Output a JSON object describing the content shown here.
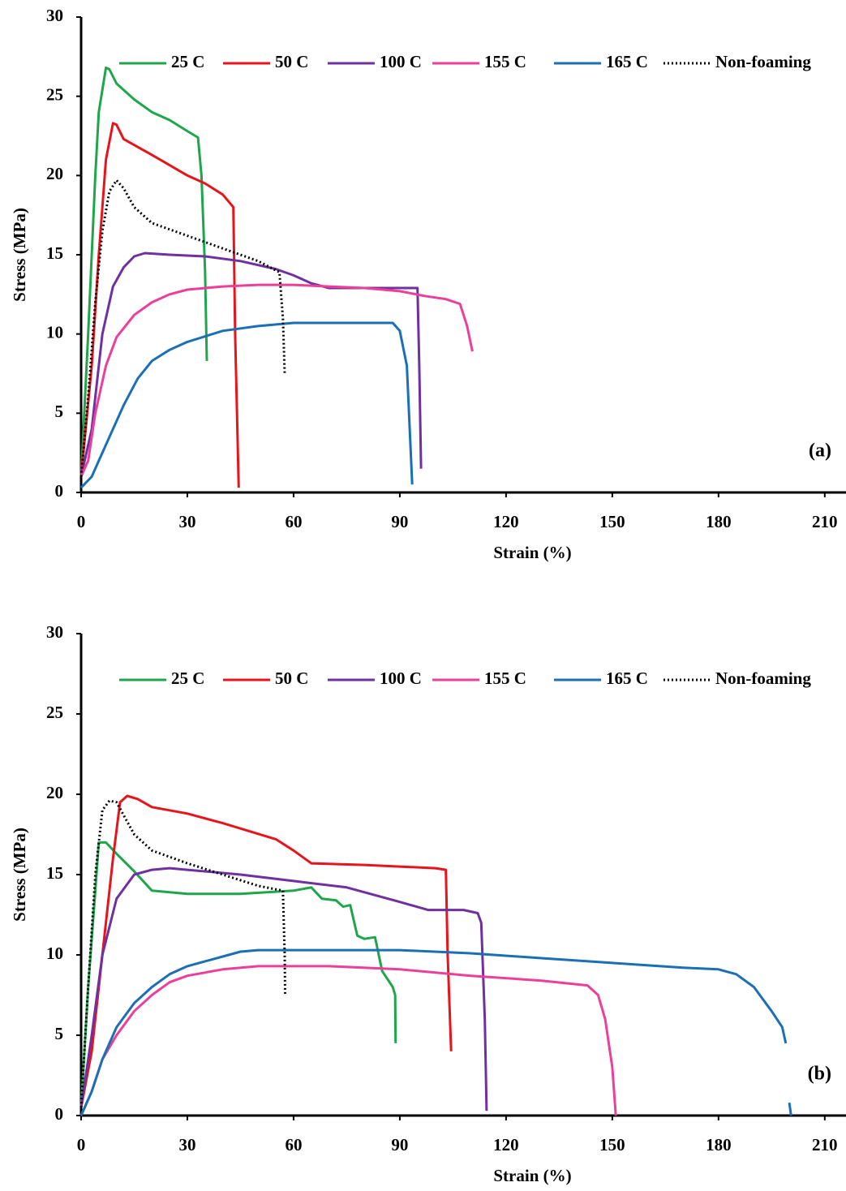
{
  "chart_data": [
    {
      "type": "line",
      "annotation": "(a)",
      "xlabel": "Strain (%)",
      "ylabel": "Stress (MPa)",
      "xlim": [
        0,
        216
      ],
      "ylim": [
        0,
        30
      ],
      "xticks": [
        0,
        30,
        60,
        90,
        120,
        150,
        180,
        210
      ],
      "yticks": [
        0,
        5,
        10,
        15,
        20,
        25,
        30
      ],
      "legend": "top",
      "series": [
        {
          "name": "25 C",
          "color": "#1fa64b",
          "line_style": "solid",
          "x": [
            0,
            2,
            4,
            5,
            7,
            8,
            10,
            15,
            20,
            25,
            30,
            33,
            34,
            35,
            35.5
          ],
          "values": [
            1,
            10,
            20,
            24,
            26.8,
            26.7,
            25.8,
            24.8,
            24,
            23.5,
            22.8,
            22.4,
            20,
            14,
            8.3
          ]
        },
        {
          "name": "50 C",
          "color": "#e8141b",
          "line_style": "solid",
          "x": [
            0,
            3,
            5,
            7,
            9,
            10,
            12,
            20,
            30,
            35,
            40,
            43,
            43.5,
            44.5
          ],
          "values": [
            1,
            8,
            15,
            21,
            23.3,
            23.2,
            22.3,
            21.3,
            20,
            19.5,
            18.8,
            18,
            10,
            0.3
          ]
        },
        {
          "name": "100 C",
          "color": "#7030a0",
          "line_style": "solid",
          "x": [
            0,
            3,
            6,
            9,
            12,
            15,
            18,
            25,
            35,
            45,
            55,
            60,
            65,
            70,
            80,
            95,
            95.5,
            96
          ],
          "values": [
            1,
            4,
            10,
            13,
            14.2,
            14.9,
            15.1,
            15,
            14.9,
            14.6,
            14.1,
            13.7,
            13.2,
            12.9,
            12.9,
            12.9,
            8,
            1.5
          ]
        },
        {
          "name": "155 C",
          "color": "#ec3f9a",
          "line_style": "solid",
          "x": [
            0,
            2,
            4,
            7,
            10,
            15,
            20,
            25,
            30,
            40,
            50,
            60,
            70,
            80,
            90,
            97,
            103,
            107,
            109,
            110.5
          ],
          "values": [
            1,
            2,
            5,
            8,
            9.8,
            11.2,
            12,
            12.5,
            12.8,
            13,
            13.1,
            13.1,
            13,
            12.9,
            12.7,
            12.4,
            12.2,
            11.9,
            10.5,
            8.9
          ]
        },
        {
          "name": "165 C",
          "color": "#1a6fb5",
          "line_style": "solid",
          "x": [
            0,
            3,
            5,
            8,
            12,
            16,
            20,
            25,
            30,
            40,
            50,
            60,
            70,
            80,
            88,
            90,
            92,
            93,
            93.5
          ],
          "values": [
            0.3,
            1,
            2,
            3.5,
            5.5,
            7.2,
            8.3,
            9,
            9.5,
            10.2,
            10.5,
            10.7,
            10.7,
            10.7,
            10.7,
            10.2,
            8,
            3,
            0.5
          ]
        },
        {
          "name": "Non-foaming",
          "color": "#000000",
          "line_style": "dotted",
          "x": [
            0,
            2,
            4,
            6,
            8,
            10,
            12,
            15,
            20,
            30,
            40,
            50,
            56,
            57,
            57.5
          ],
          "values": [
            1,
            6,
            12,
            16.5,
            19,
            19.7,
            19.2,
            18,
            17,
            16.2,
            15.4,
            14.6,
            13.9,
            11,
            7.5
          ]
        }
      ]
    },
    {
      "type": "line",
      "annotation": "(b)",
      "xlabel": "Strain (%)",
      "ylabel": "Stress (MPa)",
      "xlim": [
        0,
        216
      ],
      "ylim": [
        0,
        30
      ],
      "xticks": [
        0,
        30,
        60,
        90,
        120,
        150,
        180,
        210
      ],
      "yticks": [
        0,
        5,
        10,
        15,
        20,
        25,
        30
      ],
      "legend": "top",
      "series": [
        {
          "name": "25 C",
          "color": "#1fa64b",
          "line_style": "solid",
          "x": [
            0,
            2,
            4,
            5,
            7,
            10,
            15,
            20,
            30,
            45,
            60,
            65,
            68,
            72,
            74,
            76,
            78,
            80,
            83,
            85,
            88,
            88.7,
            88.8
          ],
          "values": [
            0.5,
            8,
            14,
            17,
            17,
            16.3,
            15.2,
            14,
            13.8,
            13.8,
            14,
            14.2,
            13.5,
            13.4,
            13,
            13.1,
            11.2,
            11,
            11.1,
            9,
            8,
            7.5,
            4.5
          ]
        },
        {
          "name": "50 C",
          "color": "#e8141b",
          "line_style": "solid",
          "x": [
            0,
            3,
            6,
            9,
            11,
            13,
            16,
            20,
            30,
            40,
            55,
            60,
            65,
            80,
            100,
            103,
            103.5,
            104.5
          ],
          "values": [
            0.5,
            4,
            10,
            16,
            19.5,
            19.9,
            19.7,
            19.2,
            18.8,
            18.2,
            17.2,
            16.5,
            15.7,
            15.6,
            15.4,
            15.3,
            10,
            4
          ]
        },
        {
          "name": "100 C",
          "color": "#7030a0",
          "line_style": "solid",
          "x": [
            0,
            3,
            6,
            10,
            15,
            20,
            25,
            30,
            45,
            60,
            75,
            90,
            98,
            108,
            112,
            113,
            114,
            114.5
          ],
          "values": [
            0.5,
            5,
            10,
            13.5,
            15,
            15.3,
            15.4,
            15.3,
            15,
            14.6,
            14.2,
            13.3,
            12.8,
            12.8,
            12.6,
            12,
            6,
            0.3
          ]
        },
        {
          "name": "155 C",
          "color": "#ec3f9a",
          "line_style": "solid",
          "x": [
            0,
            3,
            6,
            10,
            15,
            20,
            25,
            30,
            40,
            50,
            70,
            90,
            110,
            130,
            143,
            146,
            148,
            150,
            151
          ],
          "values": [
            0,
            1.5,
            3.5,
            5,
            6.5,
            7.5,
            8.3,
            8.7,
            9.1,
            9.3,
            9.3,
            9.1,
            8.7,
            8.4,
            8.1,
            7.5,
            6,
            3,
            0
          ]
        },
        {
          "name": "165 C",
          "color": "#1a6fb5",
          "line_style": "solid",
          "x": [
            0,
            3,
            6,
            10,
            15,
            20,
            25,
            30,
            40,
            45,
            50,
            70,
            90,
            110,
            130,
            150,
            170,
            180,
            185,
            190,
            195,
            198,
            199,
            199.5,
            200,
            200.5
          ],
          "values": [
            0,
            1.5,
            3.5,
            5.5,
            7,
            8,
            8.8,
            9.3,
            9.9,
            10.2,
            10.3,
            10.3,
            10.3,
            10.1,
            9.8,
            9.5,
            9.2,
            9.1,
            8.8,
            8,
            6.5,
            5.5,
            4.5,
            null,
            0.8,
            0
          ]
        },
        {
          "name": "Non-foaming",
          "color": "#000000",
          "line_style": "dotted",
          "x": [
            0,
            2,
            4,
            6,
            8,
            10,
            13,
            15,
            20,
            30,
            40,
            50,
            57,
            57.5,
            57.6
          ],
          "values": [
            0.5,
            8,
            15,
            19,
            19.6,
            19.5,
            18.3,
            17.5,
            16.5,
            15.7,
            15,
            14.3,
            14,
            10,
            7.5
          ]
        }
      ]
    }
  ]
}
